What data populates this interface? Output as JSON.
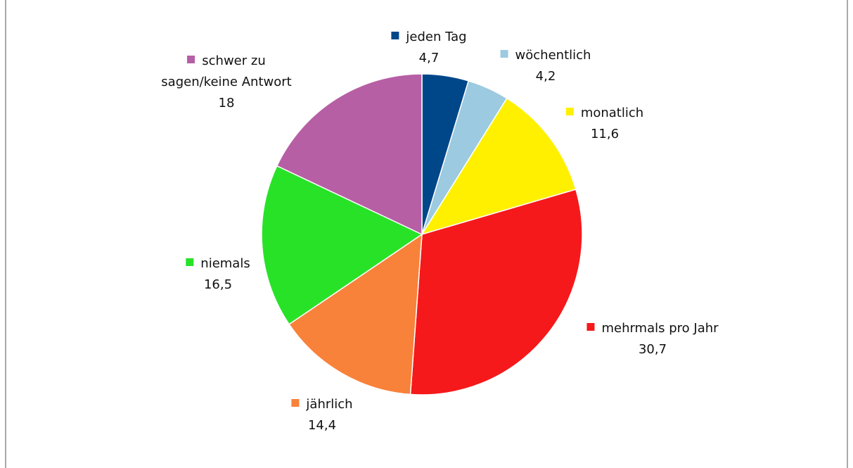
{
  "chart_data": {
    "type": "pie",
    "categories": [
      "jeden Tag",
      "wöchentlich",
      "monatlich",
      "mehrmals pro Jahr",
      "jährlich",
      "niemals",
      "schwer zu sagen/keine Antwort"
    ],
    "values": [
      4.7,
      4.2,
      11.6,
      30.7,
      14.4,
      16.5,
      18
    ],
    "value_labels": [
      "4,7",
      "4,2",
      "11,6",
      "30,7",
      "14,4",
      "16,5",
      "18"
    ],
    "colors": [
      "#00478a",
      "#9ccae0",
      "#fff000",
      "#f5191b",
      "#f8823a",
      "#28e228",
      "#b65fa5"
    ]
  }
}
